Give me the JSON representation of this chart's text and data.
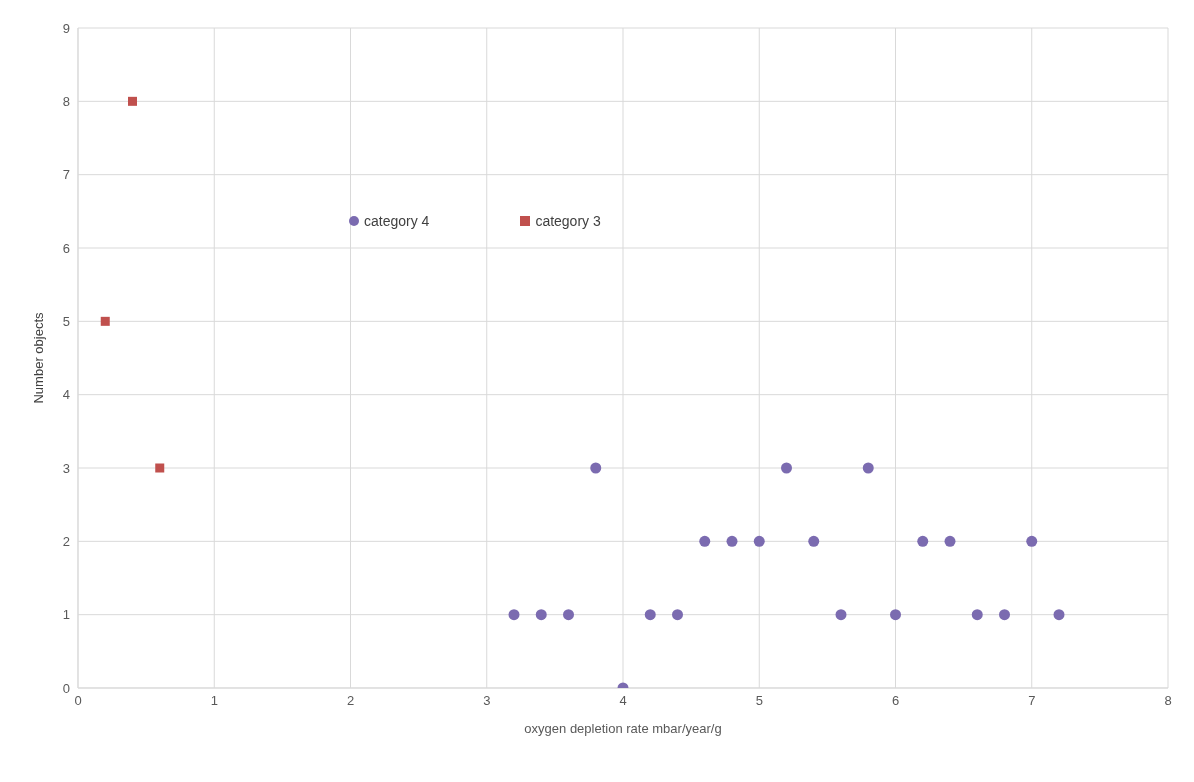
{
  "chart_data": {
    "type": "scatter",
    "xlabel": "oxygen depletion rate mbar/year/g",
    "ylabel": "Number objects",
    "xlim": [
      0,
      8
    ],
    "xticks": [
      0,
      1,
      2,
      3,
      4,
      5,
      6,
      7,
      8
    ],
    "ylim": [
      0,
      9
    ],
    "yticks": [
      0,
      1,
      2,
      3,
      4,
      5,
      6,
      7,
      8,
      9
    ],
    "grid": true,
    "legend": "top",
    "series": [
      {
        "name": "category 4",
        "color": "#7b6bb0",
        "marker": "circle",
        "x": [
          3.2,
          3.4,
          3.6,
          3.8,
          4,
          4.2,
          4.4,
          4.6,
          4.8,
          5,
          5.2,
          5.4,
          5.6,
          5.8,
          6,
          6.2,
          6.4,
          6.6,
          6.8,
          7,
          7.2
        ],
        "values": [
          1,
          1,
          1,
          3,
          0,
          1,
          1,
          2,
          2,
          2,
          3,
          2,
          1,
          3,
          1,
          2,
          2,
          1,
          1,
          2,
          1
        ]
      },
      {
        "name": "category 3",
        "color": "#c0504d",
        "marker": "square",
        "x": [
          0.2,
          0.4,
          0.6
        ],
        "values": [
          5,
          8,
          3
        ]
      }
    ]
  }
}
